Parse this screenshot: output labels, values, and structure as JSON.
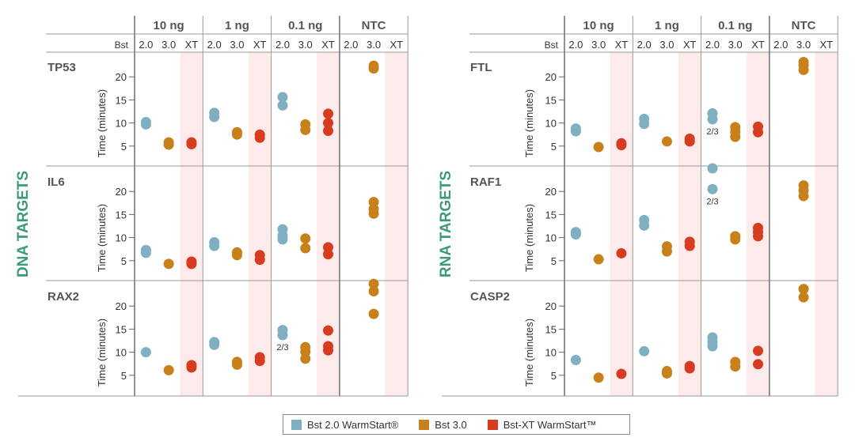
{
  "chart_data": {
    "type": "scatter",
    "axis_prefix": "Bst",
    "ylabel": "Time (minutes)",
    "yticks": [
      5,
      10,
      15,
      20
    ],
    "ylim": [
      0,
      25
    ],
    "concentrations": [
      "10 ng",
      "1 ng",
      "0.1 ng",
      "NTC"
    ],
    "variants": [
      "2.0",
      "3.0",
      "XT"
    ],
    "series": [
      {
        "key": "2.0",
        "name": "Bst 2.0 WarmStart®",
        "color": "#7fb0c2"
      },
      {
        "key": "3.0",
        "name": "Bst 3.0",
        "color": "#c8811a"
      },
      {
        "key": "XT",
        "name": "Bst-XT WarmStart™",
        "color": "#d63c20"
      }
    ],
    "panels": [
      {
        "category": "DNA TARGETS",
        "targets": [
          {
            "name": "TP53",
            "groups": [
              {
                "conc": "10 ng",
                "variant": "2.0",
                "values": [
                  9.7,
                  10.2
                ]
              },
              {
                "conc": "10 ng",
                "variant": "3.0",
                "values": [
                  5.3,
                  5.8
                ]
              },
              {
                "conc": "10 ng",
                "variant": "XT",
                "values": [
                  5.4,
                  5.8
                ]
              },
              {
                "conc": "1 ng",
                "variant": "2.0",
                "values": [
                  11.3,
                  12.2
                ]
              },
              {
                "conc": "1 ng",
                "variant": "3.0",
                "values": [
                  7.5,
                  8.0
                ]
              },
              {
                "conc": "1 ng",
                "variant": "XT",
                "values": [
                  6.8,
                  7.5
                ]
              },
              {
                "conc": "0.1 ng",
                "variant": "2.0",
                "values": [
                  13.8,
                  15.6
                ]
              },
              {
                "conc": "0.1 ng",
                "variant": "3.0",
                "values": [
                  8.5,
                  9.7
                ]
              },
              {
                "conc": "0.1 ng",
                "variant": "XT",
                "values": [
                  8.3,
                  10.0,
                  12.0
                ]
              },
              {
                "conc": "NTC",
                "variant": "3.0",
                "values": [
                  21.8,
                  22.4
                ]
              }
            ]
          },
          {
            "name": "IL6",
            "groups": [
              {
                "conc": "10 ng",
                "variant": "2.0",
                "values": [
                  6.7,
                  7.3
                ]
              },
              {
                "conc": "10 ng",
                "variant": "3.0",
                "values": [
                  4.3
                ]
              },
              {
                "conc": "10 ng",
                "variant": "XT",
                "values": [
                  4.3,
                  4.8
                ]
              },
              {
                "conc": "1 ng",
                "variant": "2.0",
                "values": [
                  8.2,
                  9.0
                ]
              },
              {
                "conc": "1 ng",
                "variant": "3.0",
                "values": [
                  6.2,
                  6.8
                ]
              },
              {
                "conc": "1 ng",
                "variant": "XT",
                "values": [
                  5.2,
                  6.2
                ]
              },
              {
                "conc": "0.1 ng",
                "variant": "2.0",
                "values": [
                  9.6,
                  10.4,
                  11.8
                ]
              },
              {
                "conc": "0.1 ng",
                "variant": "3.0",
                "values": [
                  7.7,
                  9.8
                ]
              },
              {
                "conc": "0.1 ng",
                "variant": "XT",
                "values": [
                  6.4,
                  7.9
                ]
              },
              {
                "conc": "NTC",
                "variant": "3.0",
                "values": [
                  15.2,
                  16.2,
                  17.7
                ]
              }
            ]
          },
          {
            "name": "RAX2",
            "groups": [
              {
                "conc": "10 ng",
                "variant": "2.0",
                "values": [
                  10.0
                ]
              },
              {
                "conc": "10 ng",
                "variant": "3.0",
                "values": [
                  6.1
                ]
              },
              {
                "conc": "10 ng",
                "variant": "XT",
                "values": [
                  6.7,
                  7.2
                ]
              },
              {
                "conc": "1 ng",
                "variant": "2.0",
                "values": [
                  11.6,
                  12.2
                ]
              },
              {
                "conc": "1 ng",
                "variant": "3.0",
                "values": [
                  7.3,
                  7.9
                ]
              },
              {
                "conc": "1 ng",
                "variant": "XT",
                "values": [
                  8.1,
                  8.9
                ]
              },
              {
                "conc": "0.1 ng",
                "variant": "2.0",
                "values": [
                  13.7,
                  14.8
                ],
                "note": "2/3"
              },
              {
                "conc": "0.1 ng",
                "variant": "3.0",
                "values": [
                  8.6,
                  10.1,
                  11.1
                ]
              },
              {
                "conc": "0.1 ng",
                "variant": "XT",
                "values": [
                  10.4,
                  11.3,
                  14.7
                ]
              },
              {
                "conc": "NTC",
                "variant": "3.0",
                "values": [
                  18.3,
                  23.2,
                  24.8
                ]
              }
            ]
          }
        ]
      },
      {
        "category": "RNA TARGETS",
        "targets": [
          {
            "name": "FTL",
            "groups": [
              {
                "conc": "10 ng",
                "variant": "2.0",
                "values": [
                  8.2,
                  8.8
                ]
              },
              {
                "conc": "10 ng",
                "variant": "3.0",
                "values": [
                  4.8
                ]
              },
              {
                "conc": "10 ng",
                "variant": "XT",
                "values": [
                  5.2,
                  5.6
                ]
              },
              {
                "conc": "1 ng",
                "variant": "2.0",
                "values": [
                  9.8,
                  10.9
                ]
              },
              {
                "conc": "1 ng",
                "variant": "3.0",
                "values": [
                  6.0
                ]
              },
              {
                "conc": "1 ng",
                "variant": "XT",
                "values": [
                  6.0,
                  6.6
                ]
              },
              {
                "conc": "0.1 ng",
                "variant": "2.0",
                "values": [
                  10.8,
                  12.1
                ],
                "note": "2/3"
              },
              {
                "conc": "0.1 ng",
                "variant": "3.0",
                "values": [
                  7.0,
                  8.1,
                  9.1
                ]
              },
              {
                "conc": "0.1 ng",
                "variant": "XT",
                "values": [
                  8.0,
                  9.2
                ]
              },
              {
                "conc": "NTC",
                "variant": "3.0",
                "values": [
                  21.5,
                  22.5,
                  23.2
                ]
              }
            ]
          },
          {
            "name": "RAF1",
            "groups": [
              {
                "conc": "10 ng",
                "variant": "2.0",
                "values": [
                  10.7,
                  11.2
                ]
              },
              {
                "conc": "10 ng",
                "variant": "3.0",
                "values": [
                  5.3
                ]
              },
              {
                "conc": "10 ng",
                "variant": "XT",
                "values": [
                  6.6
                ]
              },
              {
                "conc": "1 ng",
                "variant": "2.0",
                "values": [
                  12.6,
                  13.8
                ]
              },
              {
                "conc": "1 ng",
                "variant": "3.0",
                "values": [
                  7.0,
                  8.1
                ]
              },
              {
                "conc": "1 ng",
                "variant": "XT",
                "values": [
                  8.2,
                  9.1
                ]
              },
              {
                "conc": "0.1 ng",
                "variant": "2.0",
                "values": [
                  20.5,
                  25.0
                ],
                "note": "2/3"
              },
              {
                "conc": "0.1 ng",
                "variant": "3.0",
                "values": [
                  9.6,
                  10.3
                ]
              },
              {
                "conc": "0.1 ng",
                "variant": "XT",
                "values": [
                  10.3,
                  11.2,
                  12.1
                ]
              },
              {
                "conc": "NTC",
                "variant": "3.0",
                "values": [
                  19.0,
                  20.2,
                  21.3
                ]
              }
            ]
          },
          {
            "name": "CASP2",
            "groups": [
              {
                "conc": "10 ng",
                "variant": "2.0",
                "values": [
                  8.3
                ]
              },
              {
                "conc": "10 ng",
                "variant": "3.0",
                "values": [
                  4.5
                ]
              },
              {
                "conc": "10 ng",
                "variant": "XT",
                "values": [
                  5.3
                ]
              },
              {
                "conc": "1 ng",
                "variant": "2.0",
                "values": [
                  10.2
                ]
              },
              {
                "conc": "1 ng",
                "variant": "3.0",
                "values": [
                  5.4,
                  5.9
                ]
              },
              {
                "conc": "1 ng",
                "variant": "XT",
                "values": [
                  6.5,
                  7.0
                ]
              },
              {
                "conc": "0.1 ng",
                "variant": "2.0",
                "values": [
                  11.3,
                  12.2,
                  13.2
                ]
              },
              {
                "conc": "0.1 ng",
                "variant": "3.0",
                "values": [
                  6.9,
                  7.9
                ]
              },
              {
                "conc": "0.1 ng",
                "variant": "XT",
                "values": [
                  7.4,
                  10.3
                ]
              },
              {
                "conc": "NTC",
                "variant": "3.0",
                "values": [
                  21.9,
                  23.7
                ]
              }
            ]
          }
        ]
      }
    ]
  }
}
